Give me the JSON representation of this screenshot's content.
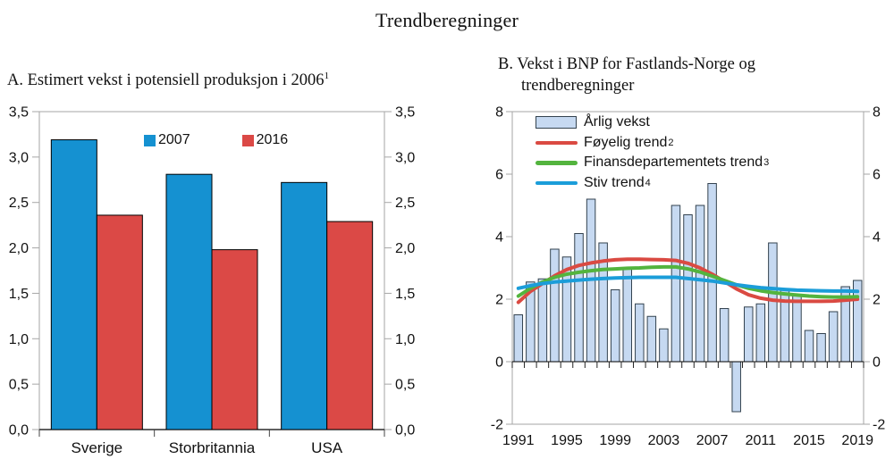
{
  "figure": {
    "title": "Trendberegninger"
  },
  "chart_data": [
    {
      "id": "panel_a",
      "type": "bar",
      "title": "A. Estimert vekst i potensiell produksjon i 2006",
      "title_superscript": "1",
      "categories": [
        "Sverige",
        "Storbritannia",
        "USA"
      ],
      "series": [
        {
          "name": "2007",
          "color": "#1591D1",
          "values": [
            3.19,
            2.81,
            2.72
          ]
        },
        {
          "name": "2016",
          "color": "#DB4946",
          "values": [
            2.36,
            1.98,
            2.29
          ]
        }
      ],
      "ylim": [
        0,
        3.5
      ],
      "ytick_values": [
        0,
        0.5,
        1,
        1.5,
        2,
        2.5,
        3,
        3.5
      ],
      "ytick_labels": [
        "0,0",
        "0,5",
        "1,0",
        "1,5",
        "2,0",
        "2,5",
        "3,0",
        "3,5"
      ],
      "y_axis_sides": "both",
      "grid": "off",
      "legend_position": "top-inside",
      "frame_color": "#A6A6A6",
      "axis_color": "#000000"
    },
    {
      "id": "panel_b",
      "type": "bar+line",
      "title_line1": "B. Vekst i BNP for Fastlands-Norge og",
      "title_line2": "trendberegninger",
      "x_start": 1991,
      "x_end": 2019,
      "xtick_labels": [
        "1991",
        "1995",
        "1999",
        "2003",
        "2007",
        "2011",
        "2015",
        "2019"
      ],
      "bars": {
        "name": "Årlig vekst",
        "fill": "#C6D9F1",
        "border": "#33424F",
        "values": [
          1.5,
          2.55,
          2.65,
          3.6,
          3.35,
          4.1,
          5.2,
          3.8,
          2.3,
          3.0,
          1.85,
          1.45,
          1.05,
          5.0,
          4.7,
          5.0,
          5.7,
          1.7,
          -1.6,
          1.75,
          1.85,
          3.8,
          2.3,
          2.1,
          1.0,
          0.9,
          1.6,
          2.4,
          2.6
        ]
      },
      "lines": [
        {
          "name": "Føyelig trend",
          "sup": "2",
          "color": "#DA4A42",
          "values": [
            1.9,
            2.25,
            2.5,
            2.75,
            2.95,
            3.08,
            3.16,
            3.22,
            3.26,
            3.28,
            3.28,
            3.27,
            3.26,
            3.24,
            3.15,
            3.0,
            2.8,
            2.57,
            2.33,
            2.14,
            2.03,
            1.97,
            1.94,
            1.93,
            1.93,
            1.93,
            1.94,
            1.97,
            2.0
          ]
        },
        {
          "name": "Finansdepartementets trend",
          "sup": "3",
          "color": "#53B43E",
          "values": [
            2.1,
            2.35,
            2.55,
            2.7,
            2.8,
            2.86,
            2.91,
            2.95,
            2.97,
            2.99,
            3.0,
            3.02,
            3.03,
            3.03,
            2.97,
            2.87,
            2.74,
            2.6,
            2.46,
            2.35,
            2.27,
            2.21,
            2.17,
            2.13,
            2.1,
            2.08,
            2.07,
            2.07,
            2.08
          ]
        },
        {
          "name": "Stiv trend",
          "sup": "4",
          "color": "#1B9DD9",
          "values": [
            2.35,
            2.43,
            2.5,
            2.55,
            2.58,
            2.61,
            2.64,
            2.66,
            2.68,
            2.69,
            2.7,
            2.7,
            2.7,
            2.7,
            2.66,
            2.62,
            2.58,
            2.52,
            2.46,
            2.41,
            2.37,
            2.34,
            2.31,
            2.29,
            2.28,
            2.27,
            2.26,
            2.26,
            2.25
          ]
        }
      ],
      "ylim": [
        -2,
        8
      ],
      "ytick_values": [
        -2,
        0,
        2,
        4,
        6,
        8
      ],
      "ytick_labels": [
        "-2",
        "0",
        "2",
        "4",
        "6",
        "8"
      ],
      "y_axis_sides": "both",
      "grid": "off",
      "legend_position": "top-left-inside",
      "frame_color": "#A6A6A6",
      "axis_color": "#000000"
    }
  ]
}
